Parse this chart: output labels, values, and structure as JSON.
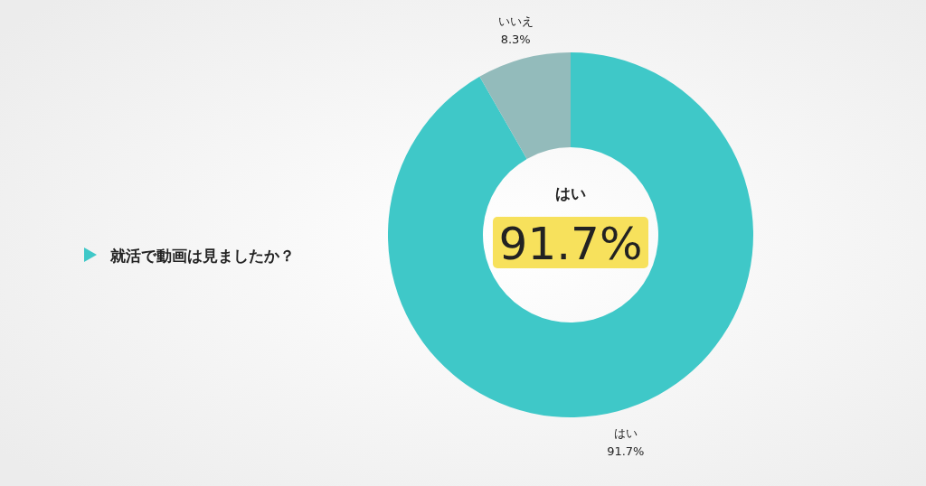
{
  "chart_data": {
    "type": "donut",
    "title": "就活で動画は見ましたか？",
    "categories": [
      "はい",
      "いいえ"
    ],
    "values": [
      91.7,
      8.3
    ],
    "value_labels": [
      "91.7%",
      "8.3%"
    ],
    "colors": [
      "#3fc8c8",
      "#93bbbb"
    ],
    "annotations": [
      "はい",
      "91.7%"
    ]
  }
}
